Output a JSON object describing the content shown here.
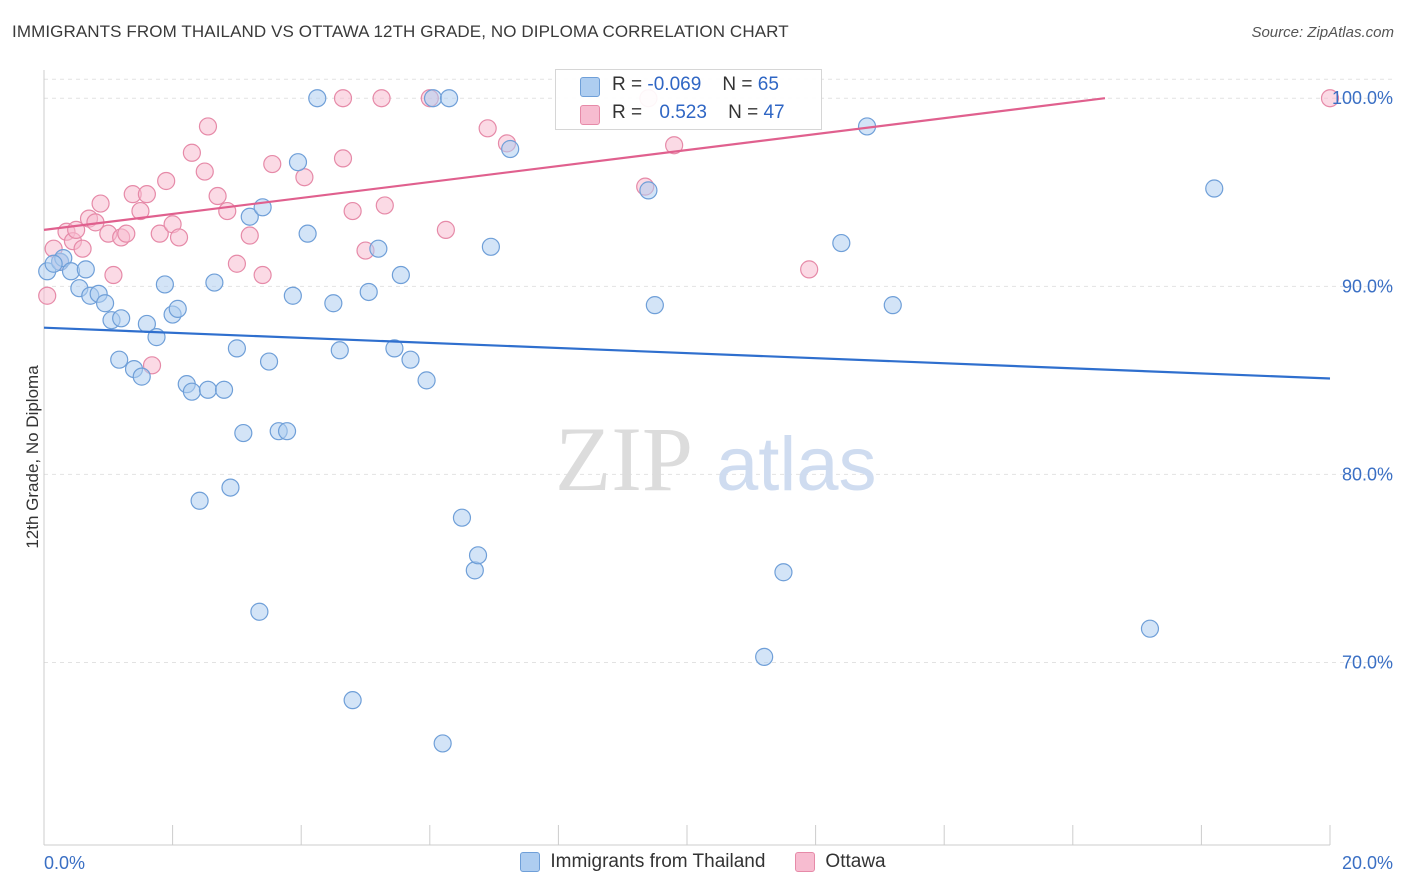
{
  "title": "IMMIGRANTS FROM THAILAND VS OTTAWA 12TH GRADE, NO DIPLOMA CORRELATION CHART",
  "source": "Source: ZipAtlas.com",
  "watermark": {
    "zip": "ZIP",
    "atlas": "atlas"
  },
  "legend": {
    "thailand": {
      "label": "Immigrants from Thailand",
      "r_label": "R =",
      "r": "-0.069",
      "n_label": "N =",
      "n": "65"
    },
    "ottawa": {
      "label": "Ottawa",
      "r_label": "R =",
      "r": "0.523",
      "n_label": "N =",
      "n": "47"
    }
  },
  "colors": {
    "blue_fill": "#aecdf0",
    "blue_stroke": "#6f9fd8",
    "blue_line": "#2f6fce",
    "pink_fill": "#f7bcd0",
    "pink_stroke": "#e68aa8",
    "pink_line": "#e0608e",
    "tick_text": "#3a6fc4",
    "grid": "#e2e2e2"
  },
  "chart_data": {
    "type": "scatter",
    "title": "IMMIGRANTS FROM THAILAND VS OTTAWA 12TH GRADE, NO DIPLOMA CORRELATION CHART",
    "xlabel": "",
    "ylabel": "12th Grade, No Diploma",
    "xlim": [
      0,
      20
    ],
    "ylim": [
      60.3,
      101.5
    ],
    "x_tick_labels": [
      "0.0%",
      "20.0%"
    ],
    "y_ticks": [
      70,
      80,
      90,
      100
    ],
    "y_tick_labels": [
      "70.0%",
      "80.0%",
      "90.0%",
      "100.0%"
    ],
    "grid": true,
    "legend_position": "top-center",
    "series": [
      {
        "name": "Immigrants from Thailand",
        "color": "#6f9fd8",
        "trend": {
          "x": [
            0,
            20
          ],
          "y": [
            87.8,
            85.1
          ]
        },
        "points": [
          {
            "x": 0.05,
            "y": 90.8
          },
          {
            "x": 0.25,
            "y": 91.3
          },
          {
            "x": 0.3,
            "y": 91.5
          },
          {
            "x": 0.42,
            "y": 90.8
          },
          {
            "x": 0.55,
            "y": 89.9
          },
          {
            "x": 0.65,
            "y": 90.9
          },
          {
            "x": 0.72,
            "y": 89.5
          },
          {
            "x": 0.85,
            "y": 89.6
          },
          {
            "x": 0.95,
            "y": 89.1
          },
          {
            "x": 1.05,
            "y": 88.2
          },
          {
            "x": 1.2,
            "y": 88.3
          },
          {
            "x": 1.17,
            "y": 86.1
          },
          {
            "x": 1.4,
            "y": 85.6
          },
          {
            "x": 1.52,
            "y": 85.2
          },
          {
            "x": 1.6,
            "y": 88.0
          },
          {
            "x": 1.75,
            "y": 87.3
          },
          {
            "x": 1.88,
            "y": 90.1
          },
          {
            "x": 2.0,
            "y": 88.5
          },
          {
            "x": 2.08,
            "y": 88.8
          },
          {
            "x": 2.22,
            "y": 84.8
          },
          {
            "x": 2.3,
            "y": 84.4
          },
          {
            "x": 2.55,
            "y": 84.5
          },
          {
            "x": 2.8,
            "y": 84.5
          },
          {
            "x": 2.65,
            "y": 90.2
          },
          {
            "x": 2.42,
            "y": 78.6
          },
          {
            "x": 2.9,
            "y": 79.3
          },
          {
            "x": 3.0,
            "y": 86.7
          },
          {
            "x": 3.1,
            "y": 82.2
          },
          {
            "x": 3.2,
            "y": 93.7
          },
          {
            "x": 3.4,
            "y": 94.2
          },
          {
            "x": 3.5,
            "y": 86.0
          },
          {
            "x": 3.35,
            "y": 72.7
          },
          {
            "x": 3.65,
            "y": 82.3
          },
          {
            "x": 3.78,
            "y": 82.3
          },
          {
            "x": 3.87,
            "y": 89.5
          },
          {
            "x": 3.95,
            "y": 96.6
          },
          {
            "x": 4.1,
            "y": 92.8
          },
          {
            "x": 4.25,
            "y": 100.0
          },
          {
            "x": 4.5,
            "y": 89.1
          },
          {
            "x": 4.6,
            "y": 86.6
          },
          {
            "x": 4.8,
            "y": 68.0
          },
          {
            "x": 5.05,
            "y": 89.7
          },
          {
            "x": 5.2,
            "y": 92.0
          },
          {
            "x": 5.45,
            "y": 86.7
          },
          {
            "x": 5.55,
            "y": 90.6
          },
          {
            "x": 5.7,
            "y": 86.1
          },
          {
            "x": 5.95,
            "y": 85.0
          },
          {
            "x": 6.05,
            "y": 100.0
          },
          {
            "x": 6.2,
            "y": 65.7
          },
          {
            "x": 6.3,
            "y": 100.0
          },
          {
            "x": 6.5,
            "y": 77.7
          },
          {
            "x": 6.7,
            "y": 74.9
          },
          {
            "x": 6.75,
            "y": 75.7
          },
          {
            "x": 6.95,
            "y": 92.1
          },
          {
            "x": 7.25,
            "y": 97.3
          },
          {
            "x": 9.4,
            "y": 95.1
          },
          {
            "x": 9.5,
            "y": 89.0
          },
          {
            "x": 11.2,
            "y": 70.3
          },
          {
            "x": 11.5,
            "y": 74.8
          },
          {
            "x": 12.4,
            "y": 92.3
          },
          {
            "x": 12.8,
            "y": 98.5
          },
          {
            "x": 13.2,
            "y": 89.0
          },
          {
            "x": 17.2,
            "y": 71.8
          },
          {
            "x": 18.2,
            "y": 95.2
          },
          {
            "x": 0.15,
            "y": 91.2
          }
        ]
      },
      {
        "name": "Ottawa",
        "color": "#e68aa8",
        "trend": {
          "x": [
            0,
            16.5
          ],
          "y": [
            93.0,
            100.0
          ]
        },
        "points": [
          {
            "x": 0.05,
            "y": 89.5
          },
          {
            "x": 0.15,
            "y": 92.0
          },
          {
            "x": 0.25,
            "y": 91.3
          },
          {
            "x": 0.35,
            "y": 92.9
          },
          {
            "x": 0.45,
            "y": 92.4
          },
          {
            "x": 0.5,
            "y": 93.0
          },
          {
            "x": 0.6,
            "y": 92.0
          },
          {
            "x": 0.7,
            "y": 93.6
          },
          {
            "x": 0.8,
            "y": 93.4
          },
          {
            "x": 0.88,
            "y": 94.4
          },
          {
            "x": 1.0,
            "y": 92.8
          },
          {
            "x": 1.08,
            "y": 90.6
          },
          {
            "x": 1.2,
            "y": 92.6
          },
          {
            "x": 1.28,
            "y": 92.8
          },
          {
            "x": 1.38,
            "y": 94.9
          },
          {
            "x": 1.5,
            "y": 94.0
          },
          {
            "x": 1.6,
            "y": 94.9
          },
          {
            "x": 1.68,
            "y": 85.8
          },
          {
            "x": 1.8,
            "y": 92.8
          },
          {
            "x": 1.9,
            "y": 95.6
          },
          {
            "x": 2.0,
            "y": 93.3
          },
          {
            "x": 2.1,
            "y": 92.6
          },
          {
            "x": 2.3,
            "y": 97.1
          },
          {
            "x": 2.5,
            "y": 96.1
          },
          {
            "x": 2.55,
            "y": 98.5
          },
          {
            "x": 2.7,
            "y": 94.8
          },
          {
            "x": 2.85,
            "y": 94.0
          },
          {
            "x": 3.0,
            "y": 91.2
          },
          {
            "x": 3.2,
            "y": 92.7
          },
          {
            "x": 3.4,
            "y": 90.6
          },
          {
            "x": 3.55,
            "y": 96.5
          },
          {
            "x": 4.05,
            "y": 95.8
          },
          {
            "x": 4.65,
            "y": 100.0
          },
          {
            "x": 4.65,
            "y": 96.8
          },
          {
            "x": 4.8,
            "y": 94.0
          },
          {
            "x": 5.0,
            "y": 91.9
          },
          {
            "x": 5.25,
            "y": 100.0
          },
          {
            "x": 5.3,
            "y": 94.3
          },
          {
            "x": 6.0,
            "y": 100.0
          },
          {
            "x": 6.25,
            "y": 93.0
          },
          {
            "x": 6.9,
            "y": 98.4
          },
          {
            "x": 7.2,
            "y": 97.6
          },
          {
            "x": 9.35,
            "y": 95.3
          },
          {
            "x": 9.4,
            "y": 100.0
          },
          {
            "x": 9.8,
            "y": 97.5
          },
          {
            "x": 11.9,
            "y": 90.9
          },
          {
            "x": 20.0,
            "y": 100.0
          }
        ]
      }
    ]
  }
}
